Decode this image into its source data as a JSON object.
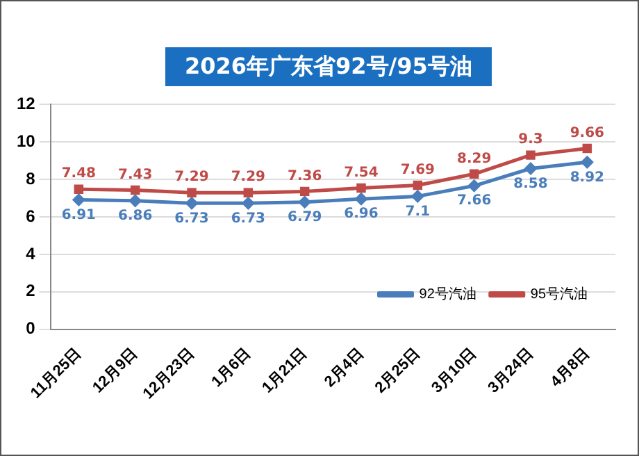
{
  "chart_data": {
    "type": "line",
    "title": "2026年广东省92号/95号油",
    "categories": [
      "11月25日",
      "12月9日",
      "12月23日",
      "1月6日",
      "1月21日",
      "2月4日",
      "2月25日",
      "3月10日",
      "3月24日",
      "4月8日"
    ],
    "series": [
      {
        "name": "92号汽油",
        "color": "#4a7ebb",
        "marker": "diamond",
        "values": [
          6.91,
          6.86,
          6.73,
          6.73,
          6.79,
          6.96,
          7.1,
          7.66,
          8.58,
          8.92
        ]
      },
      {
        "name": "95号汽油",
        "color": "#be4b48",
        "marker": "square",
        "values": [
          7.48,
          7.43,
          7.29,
          7.29,
          7.36,
          7.54,
          7.69,
          8.29,
          9.3,
          9.66
        ]
      }
    ],
    "ylim": [
      0,
      12
    ],
    "yticks": [
      0,
      2,
      4,
      6,
      8,
      10,
      12
    ],
    "grid": "y",
    "legend": "bottom right",
    "data_labels": true
  }
}
